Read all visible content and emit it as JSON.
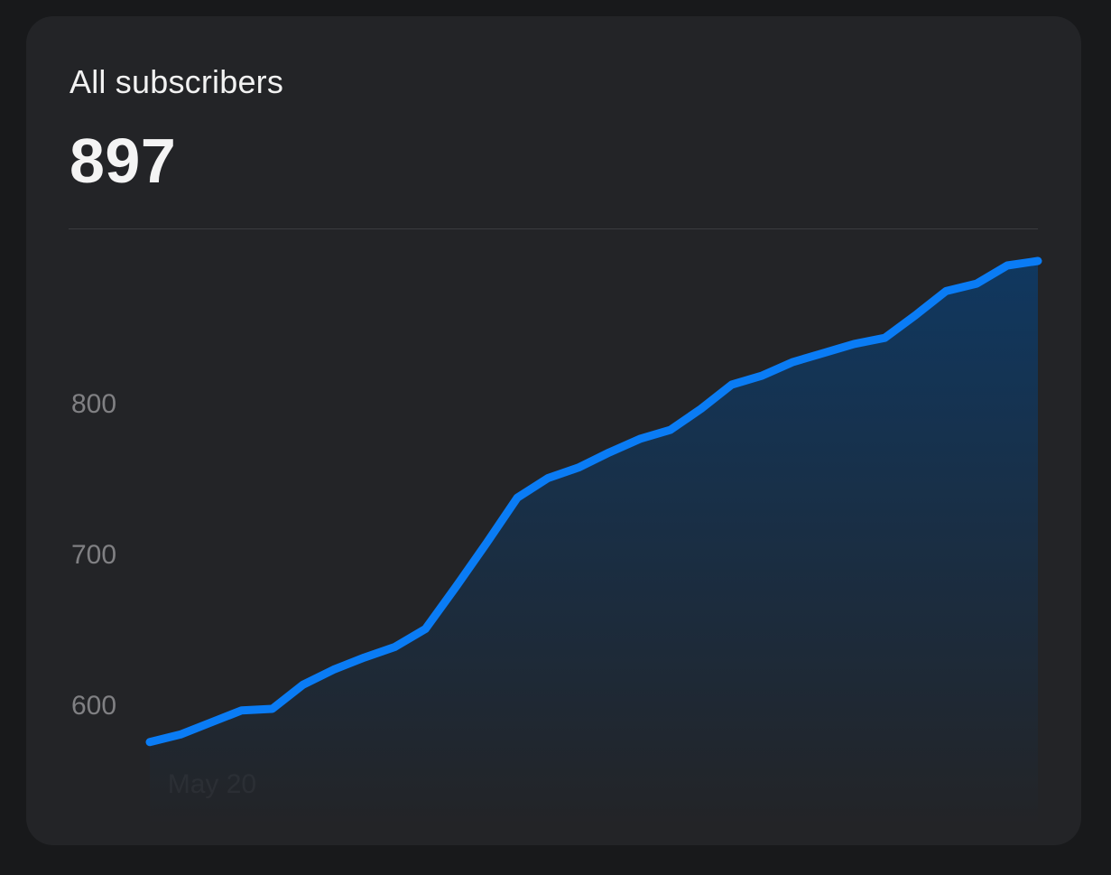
{
  "card": {
    "title": "All subscribers",
    "value": "897"
  },
  "colors": {
    "background": "#18191b",
    "card": "#232427",
    "line": "#0a7cf5",
    "text": "#f2f2f2",
    "tick": "#808083"
  },
  "chart_data": {
    "type": "area",
    "title": "",
    "xlabel": "",
    "ylabel": "",
    "x_ticks": [
      {
        "index": 1,
        "label": "May 20"
      }
    ],
    "y_ticks": [
      600,
      700,
      800
    ],
    "ylim": [
      550,
      900
    ],
    "grid": false,
    "series": [
      {
        "values": [
          575,
          580,
          588,
          596,
          597,
          613,
          623,
          631,
          638,
          650,
          678,
          707,
          737,
          750,
          757,
          767,
          776,
          782,
          796,
          812,
          818,
          827,
          833,
          839,
          843,
          858,
          874,
          879,
          891,
          894
        ]
      }
    ]
  }
}
